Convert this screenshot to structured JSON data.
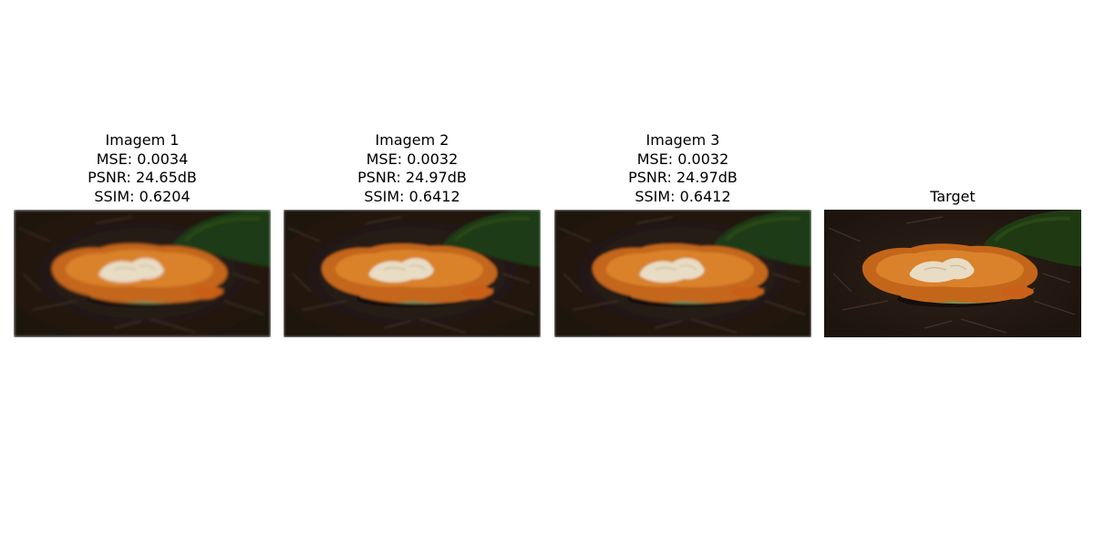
{
  "panels": [
    {
      "title": "Imagem 1",
      "mse": "MSE: 0.0034",
      "psnr": "PSNR: 24.65dB",
      "ssim": "SSIM: 0.6204",
      "blur": 1.6
    },
    {
      "title": "Imagem 2",
      "mse": "MSE: 0.0032",
      "psnr": "PSNR: 24.97dB",
      "ssim": "SSIM: 0.6412",
      "blur": 1.4
    },
    {
      "title": "Imagem 3",
      "mse": "MSE: 0.0032",
      "psnr": "PSNR: 24.97dB",
      "ssim": "SSIM: 0.6412",
      "blur": 1.4
    },
    {
      "title": "Target",
      "blur": 0
    }
  ],
  "colors": {
    "ground": "#1e140e",
    "moss": "#1f3a12",
    "mushroom_rim": "#c4661a",
    "mushroom_body": "#d9822b",
    "mushroom_center": "#e8dcc4",
    "gill": "#7a8a52"
  }
}
